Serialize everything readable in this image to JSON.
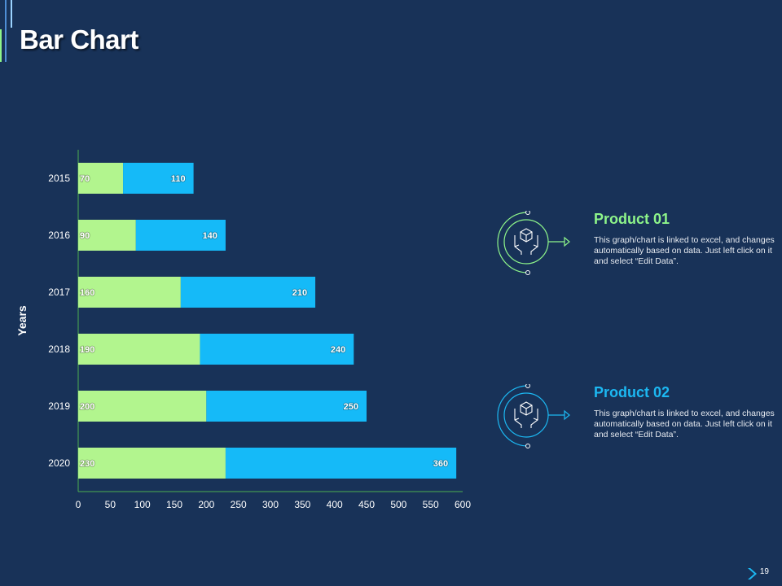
{
  "page": {
    "title": "Bar Chart",
    "page_number": "19"
  },
  "colors": {
    "background": "#183258",
    "series1": "#b2f58e",
    "series2": "#15baf8",
    "product1": "#8ef58a",
    "product2": "#1cb8f2"
  },
  "chart_data": {
    "type": "bar",
    "orientation": "horizontal",
    "stacked": true,
    "categories": [
      "2015",
      "2016",
      "2017",
      "2018",
      "2019",
      "2020"
    ],
    "series": [
      {
        "name": "Product 01",
        "values": [
          70,
          90,
          160,
          190,
          200,
          230
        ],
        "color": "#b2f58e"
      },
      {
        "name": "Product 02",
        "values": [
          110,
          140,
          210,
          240,
          250,
          360
        ],
        "color": "#15baf8"
      }
    ],
    "xlim": [
      0,
      600
    ],
    "xticks": [
      "0",
      "50",
      "100",
      "150",
      "200",
      "250",
      "300",
      "350",
      "400",
      "450",
      "500",
      "550",
      "600"
    ],
    "xlabel": "",
    "ylabel": "Years",
    "legend": "none"
  },
  "products": [
    {
      "title": "Product 01",
      "description": "This graph/chart is linked to excel, and changes automatically based on data. Just left click on it and select “Edit Data”.",
      "icon": "box-in-hands-icon",
      "color": "#8ef58a"
    },
    {
      "title": "Product 02",
      "description": "This graph/chart is linked to excel, and changes automatically based on data. Just left click on it and select “Edit Data”.",
      "icon": "box-in-hands-icon",
      "color": "#1cb8f2"
    }
  ]
}
